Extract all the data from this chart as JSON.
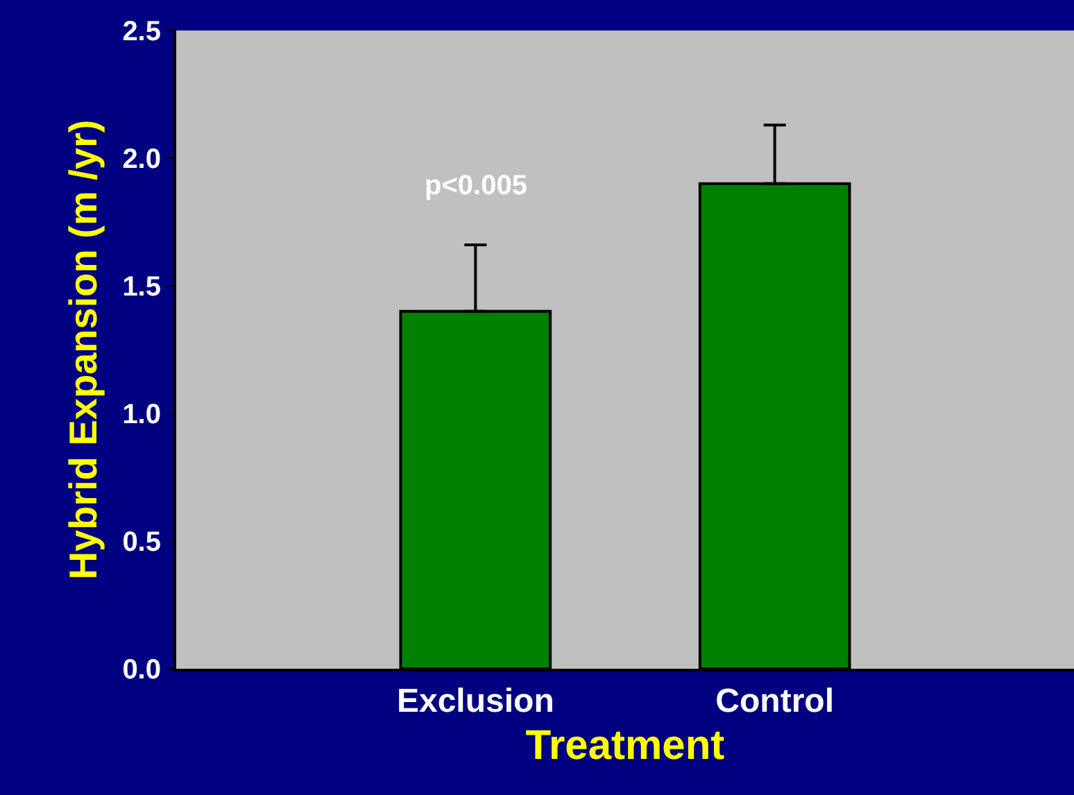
{
  "chart_data": {
    "type": "bar",
    "xlabel": "Treatment",
    "ylabel": "Hybrid Expansion (m /yr)",
    "categories": [
      "Exclusion",
      "Control"
    ],
    "values": [
      1.4,
      1.9
    ],
    "color": "#008000",
    "errors": [
      [
        1.4,
        1.66
      ],
      [
        1.9,
        2.13
      ]
    ],
    "ylim": [
      0,
      2.5
    ],
    "yticks": [
      {
        "value": 0,
        "label": "0.0"
      },
      {
        "value": 0.5,
        "label": "0.5"
      },
      {
        "value": 1,
        "label": "1.0"
      },
      {
        "value": 1.5,
        "label": "1.5"
      },
      {
        "value": 2,
        "label": "2.0"
      },
      {
        "value": 2.5,
        "label": "2.5"
      }
    ],
    "grid": false,
    "legend": false,
    "annotations": [
      "p<0.005"
    ]
  }
}
